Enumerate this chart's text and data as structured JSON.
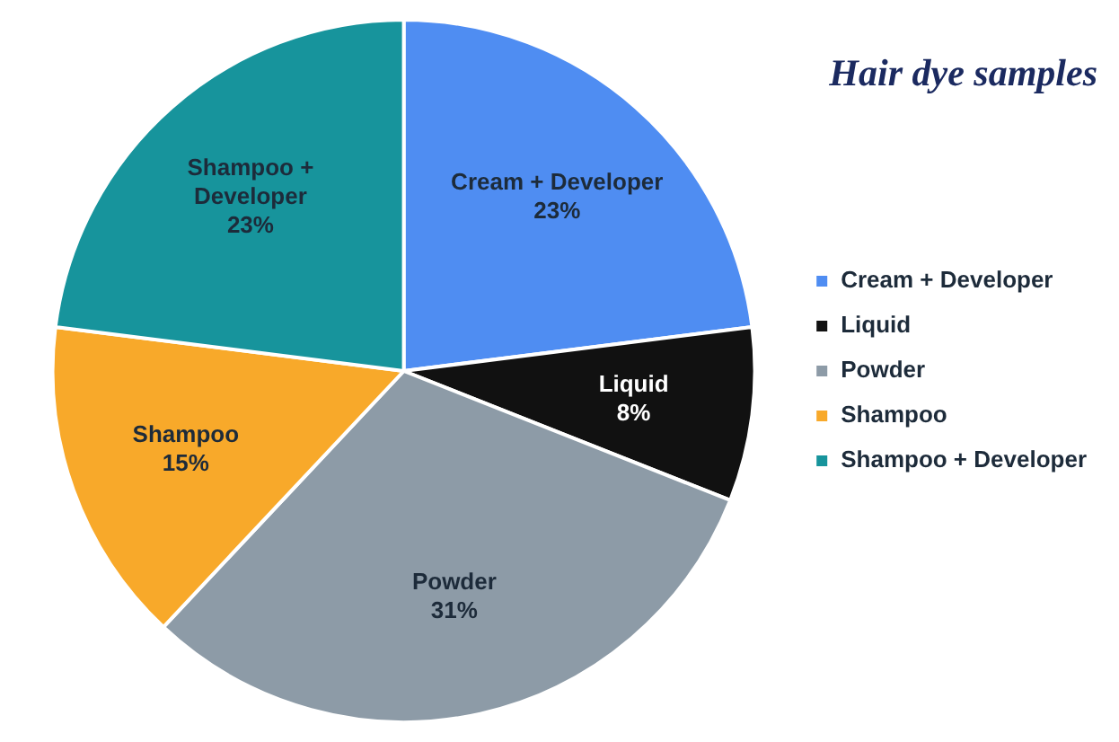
{
  "chart_data": {
    "type": "pie",
    "title": "Hair dye samples",
    "categories": [
      "Cream + Developer",
      "Liquid",
      "Powder",
      "Shampoo",
      "Shampoo + Developer"
    ],
    "values": [
      23,
      8,
      31,
      15,
      23
    ],
    "colors": [
      "#4f8df2",
      "#111111",
      "#8d9ba7",
      "#f8a92a",
      "#17949c"
    ],
    "value_labels": [
      "23%",
      "8%",
      "31%",
      "15%",
      "23%"
    ],
    "legend": "right"
  }
}
